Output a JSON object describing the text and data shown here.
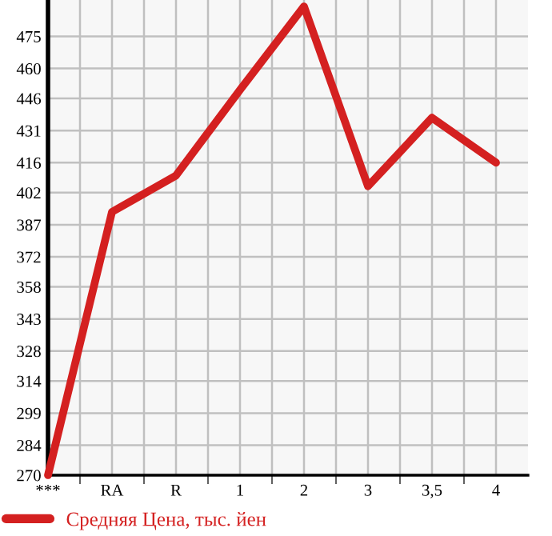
{
  "chart_data": {
    "type": "line",
    "categories": [
      "***",
      "RA",
      "R",
      "1",
      "2",
      "3",
      "3,5",
      "4"
    ],
    "series": [
      {
        "name": "Средняя Цена, тыс. йен",
        "color": "#d42020",
        "values": [
          270,
          393,
          410,
          450,
          489,
          405,
          437,
          416
        ]
      }
    ],
    "ylim": [
      270,
      492
    ],
    "yticks": [
      270,
      284,
      299,
      314,
      328,
      343,
      358,
      372,
      387,
      402,
      416,
      431,
      446,
      460,
      475
    ],
    "grid": true,
    "legend": "bottom left",
    "marker": "none",
    "line_style": "solid"
  }
}
